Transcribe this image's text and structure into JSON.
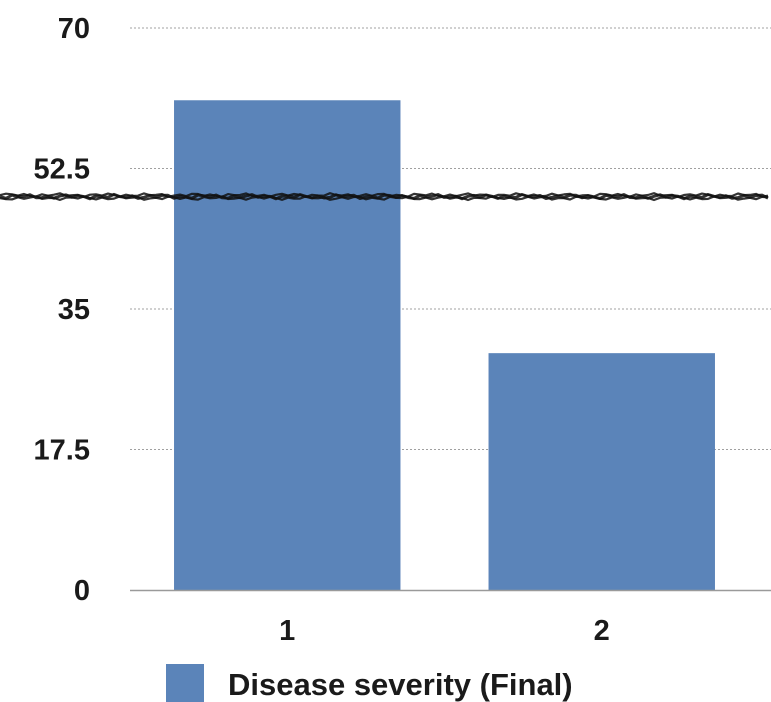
{
  "chart_data": {
    "type": "bar",
    "categories": [
      "1",
      "2"
    ],
    "series": [
      {
        "name": "Disease severity (Final)",
        "values": [
          61,
          29.5
        ]
      }
    ],
    "title": "",
    "xlabel": "",
    "ylabel": "",
    "ylim": [
      0,
      70
    ],
    "yticks": [
      "0",
      "17.5",
      "35",
      "52.5",
      "70"
    ],
    "ytick_values": [
      0,
      17.5,
      35,
      52.5,
      70
    ],
    "reference_line": {
      "y": 49
    },
    "grid": true,
    "legend_position": "bottom",
    "colors": {
      "bar": "#5b84b9",
      "grid": "#a0a0a0",
      "axis": "#9a9a9a",
      "reference_line": "#111111"
    }
  }
}
